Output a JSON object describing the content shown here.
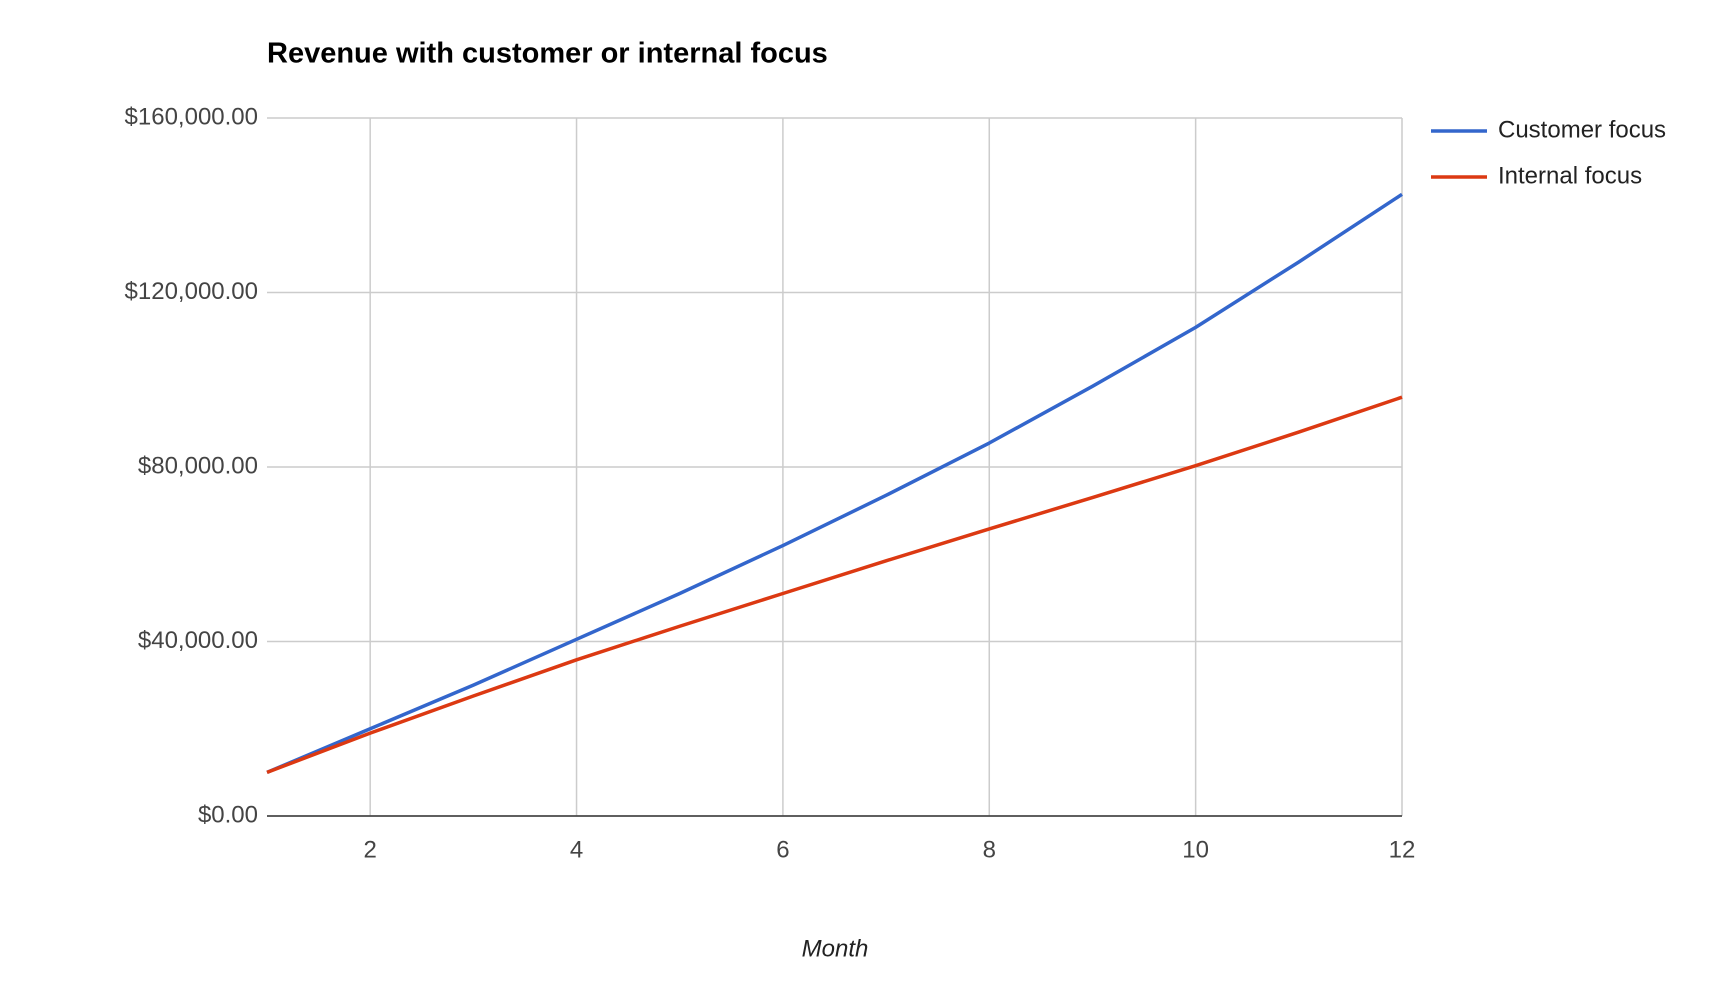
{
  "chart_data": {
    "type": "line",
    "title": "Revenue with customer or internal focus",
    "x_label": "Month",
    "x": [
      1,
      2,
      3,
      4,
      5,
      6,
      7,
      8,
      9,
      10,
      11,
      12
    ],
    "series": [
      {
        "name": "Customer focus",
        "color": "#3366cc",
        "values": [
          10000,
          20000,
          30000,
          40500,
          51000,
          62000,
          73500,
          85500,
          98500,
          112000,
          127000,
          142500
        ]
      },
      {
        "name": "Internal focus",
        "color": "#dc3912",
        "values": [
          10000,
          19000,
          27500,
          35800,
          43500,
          51000,
          58500,
          65800,
          73000,
          80300,
          88000,
          96000
        ]
      }
    ],
    "xlim": [
      1,
      12
    ],
    "xticks": [
      2,
      4,
      6,
      8,
      10,
      12
    ],
    "ylim": [
      0,
      160000
    ],
    "yticks": [
      {
        "value": 0,
        "label": "$0.00"
      },
      {
        "value": 40000,
        "label": "$40,000.00"
      },
      {
        "value": 80000,
        "label": "$80,000.00"
      },
      {
        "value": 120000,
        "label": "$120,000.00"
      },
      {
        "value": 160000,
        "label": "$160,000.00"
      }
    ],
    "grid": true,
    "legend": "right"
  }
}
